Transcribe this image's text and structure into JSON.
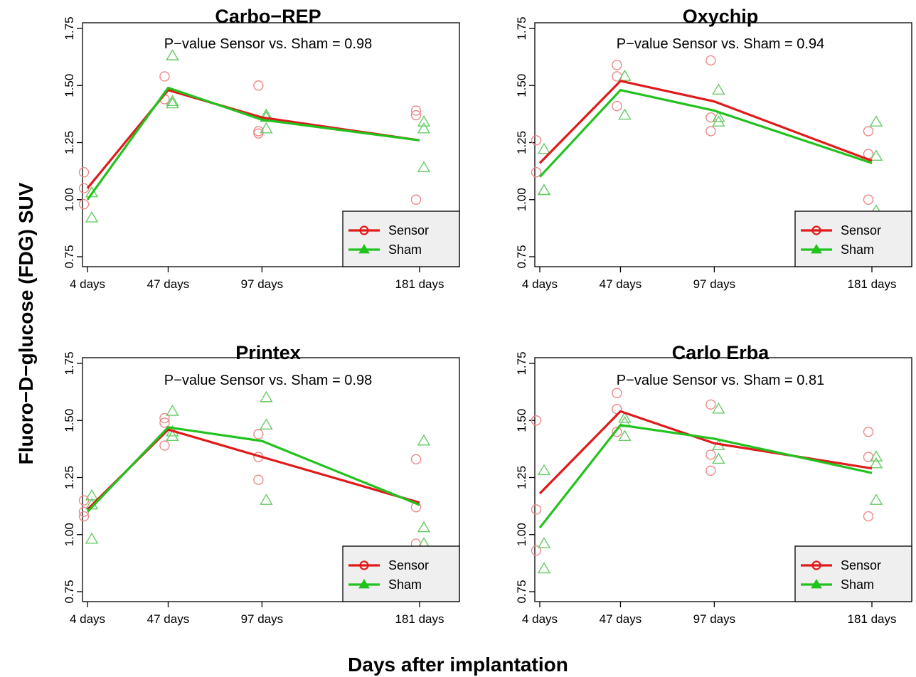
{
  "figure": {
    "ylabel": "Fluoro−D−glucose (FDG) SUV",
    "xlabel": "Days after implantation"
  },
  "colors": {
    "sensor": "#e01a1a",
    "sham": "#22c21e",
    "sensor_point": "#ee8888",
    "sham_point": "#66cc66",
    "legend_bg": "#efefef"
  },
  "chart_data": [
    {
      "type": "line",
      "title": "Carbo−REP",
      "subtitle": "P−value Sensor vs. Sham = 0.98",
      "x": [
        4,
        47,
        97,
        181
      ],
      "x_tick_labels": [
        "4 days",
        "47 days",
        "97 days",
        "181 days"
      ],
      "y_ticks": [
        "0.75",
        "1.00",
        "1.25",
        "1.50",
        "1.75"
      ],
      "ylim": [
        0.75,
        1.75
      ],
      "legend": {
        "position": "bottom-right",
        "entries": [
          "Sensor",
          "Sham"
        ]
      },
      "series": [
        {
          "name": "Sensor",
          "line": [
            1.05,
            1.48,
            1.36,
            1.26
          ],
          "points": [
            [
              4,
              1.12
            ],
            [
              4,
              1.05
            ],
            [
              4,
              0.98
            ],
            [
              47,
              1.54
            ],
            [
              47,
              1.44
            ],
            [
              97,
              1.5
            ],
            [
              97,
              1.3
            ],
            [
              97,
              1.29
            ],
            [
              181,
              1.39
            ],
            [
              181,
              1.37
            ],
            [
              181,
              1.0
            ]
          ]
        },
        {
          "name": "Sham",
          "line": [
            1.0,
            1.49,
            1.35,
            1.26
          ],
          "points": [
            [
              4,
              1.03
            ],
            [
              4,
              0.92
            ],
            [
              47,
              1.63
            ],
            [
              47,
              1.43
            ],
            [
              47,
              1.42
            ],
            [
              97,
              1.37
            ],
            [
              97,
              1.36
            ],
            [
              97,
              1.31
            ],
            [
              181,
              1.34
            ],
            [
              181,
              1.31
            ],
            [
              181,
              1.14
            ]
          ]
        }
      ]
    },
    {
      "type": "line",
      "title": "Oxychip",
      "subtitle": "P−value Sensor vs. Sham = 0.94",
      "x": [
        4,
        47,
        97,
        181
      ],
      "x_tick_labels": [
        "4 days",
        "47 days",
        "97 days",
        "181 days"
      ],
      "y_ticks": [
        "0.75",
        "1.00",
        "1.25",
        "1.50",
        "1.75"
      ],
      "ylim": [
        0.75,
        1.75
      ],
      "legend": {
        "position": "bottom-right",
        "entries": [
          "Sensor",
          "Sham"
        ]
      },
      "series": [
        {
          "name": "Sensor",
          "line": [
            1.16,
            1.52,
            1.43,
            1.17
          ],
          "points": [
            [
              4,
              1.26
            ],
            [
              4,
              1.12
            ],
            [
              47,
              1.59
            ],
            [
              47,
              1.54
            ],
            [
              47,
              1.41
            ],
            [
              97,
              1.61
            ],
            [
              97,
              1.36
            ],
            [
              97,
              1.3
            ],
            [
              181,
              1.3
            ],
            [
              181,
              1.2
            ],
            [
              181,
              1.0
            ]
          ]
        },
        {
          "name": "Sham",
          "line": [
            1.1,
            1.48,
            1.39,
            1.16
          ],
          "points": [
            [
              4,
              1.22
            ],
            [
              4,
              1.04
            ],
            [
              4,
              1.04
            ],
            [
              47,
              1.54
            ],
            [
              47,
              1.37
            ],
            [
              97,
              1.48
            ],
            [
              97,
              1.36
            ],
            [
              97,
              1.34
            ],
            [
              181,
              1.34
            ],
            [
              181,
              1.19
            ],
            [
              181,
              0.95
            ]
          ]
        }
      ]
    },
    {
      "type": "line",
      "title": "Printex",
      "subtitle": "P−value Sensor vs. Sham = 0.98",
      "x": [
        4,
        47,
        97,
        181
      ],
      "x_tick_labels": [
        "4 days",
        "47 days",
        "97 days",
        "181 days"
      ],
      "y_ticks": [
        "0.75",
        "1.00",
        "1.25",
        "1.50",
        "1.75"
      ],
      "ylim": [
        0.75,
        1.75
      ],
      "legend": {
        "position": "bottom-right",
        "entries": [
          "Sensor",
          "Sham"
        ]
      },
      "series": [
        {
          "name": "Sensor",
          "line": [
            1.11,
            1.46,
            1.34,
            1.14
          ],
          "points": [
            [
              4,
              1.15
            ],
            [
              4,
              1.1
            ],
            [
              4,
              1.08
            ],
            [
              47,
              1.51
            ],
            [
              47,
              1.49
            ],
            [
              47,
              1.39
            ],
            [
              97,
              1.44
            ],
            [
              97,
              1.34
            ],
            [
              97,
              1.24
            ],
            [
              181,
              1.33
            ],
            [
              181,
              1.12
            ],
            [
              181,
              0.96
            ]
          ]
        },
        {
          "name": "Sham",
          "line": [
            1.1,
            1.47,
            1.41,
            1.13
          ],
          "points": [
            [
              4,
              1.17
            ],
            [
              4,
              1.13
            ],
            [
              4,
              0.98
            ],
            [
              47,
              1.54
            ],
            [
              47,
              1.45
            ],
            [
              47,
              1.43
            ],
            [
              97,
              1.6
            ],
            [
              97,
              1.48
            ],
            [
              97,
              1.15
            ],
            [
              181,
              1.41
            ],
            [
              181,
              1.03
            ],
            [
              181,
              0.96
            ]
          ]
        }
      ]
    },
    {
      "type": "line",
      "title": "Carlo Erba",
      "subtitle": "P−value Sensor vs. Sham = 0.81",
      "x": [
        4,
        47,
        97,
        181
      ],
      "x_tick_labels": [
        "4 days",
        "47 days",
        "97 days",
        "181 days"
      ],
      "y_ticks": [
        "0.75",
        "1.00",
        "1.25",
        "1.50",
        "1.75"
      ],
      "ylim": [
        0.75,
        1.75
      ],
      "legend": {
        "position": "bottom-right",
        "entries": [
          "Sensor",
          "Sham"
        ]
      },
      "series": [
        {
          "name": "Sensor",
          "line": [
            1.18,
            1.54,
            1.4,
            1.29
          ],
          "points": [
            [
              4,
              1.5
            ],
            [
              4,
              1.11
            ],
            [
              4,
              0.93
            ],
            [
              47,
              1.62
            ],
            [
              47,
              1.55
            ],
            [
              47,
              1.45
            ],
            [
              97,
              1.57
            ],
            [
              97,
              1.35
            ],
            [
              97,
              1.28
            ],
            [
              181,
              1.45
            ],
            [
              181,
              1.34
            ],
            [
              181,
              1.08
            ]
          ]
        },
        {
          "name": "Sham",
          "line": [
            1.03,
            1.48,
            1.42,
            1.27
          ],
          "points": [
            [
              4,
              1.28
            ],
            [
              4,
              0.96
            ],
            [
              4,
              0.85
            ],
            [
              47,
              1.51
            ],
            [
              47,
              1.49
            ],
            [
              47,
              1.43
            ],
            [
              97,
              1.55
            ],
            [
              97,
              1.39
            ],
            [
              97,
              1.33
            ],
            [
              181,
              1.34
            ],
            [
              181,
              1.31
            ],
            [
              181,
              1.15
            ]
          ]
        }
      ]
    }
  ]
}
